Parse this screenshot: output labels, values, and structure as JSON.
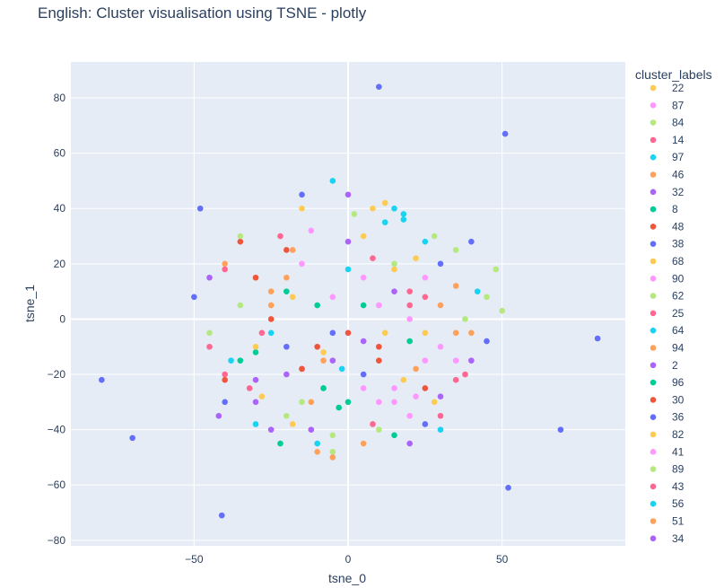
{
  "chart_data": {
    "type": "scatter",
    "title": "English: Cluster visualisation using TSNE - plotly",
    "xlabel": "tsne_0",
    "ylabel": "tsne_1",
    "xlim": [
      -90,
      90
    ],
    "ylim": [
      -82,
      93
    ],
    "xticks": [
      -50,
      0,
      50
    ],
    "yticks": [
      -80,
      -60,
      -40,
      -20,
      0,
      20,
      40,
      60,
      80
    ],
    "grid": true,
    "plot_background": "#e5ecf6",
    "legend_position": "right",
    "legend_title": "cluster_labels",
    "series": [
      {
        "name": "22",
        "color": "#FECB52",
        "points": [
          [
            12,
            42
          ],
          [
            -18,
            8
          ],
          [
            25,
            -5
          ],
          [
            5,
            30
          ],
          [
            -30,
            15
          ],
          [
            18,
            -22
          ],
          [
            -8,
            -12
          ]
        ]
      },
      {
        "name": "87",
        "color": "#FF97FF",
        "points": [
          [
            22,
            -28
          ],
          [
            15,
            -30
          ],
          [
            30,
            -10
          ],
          [
            10,
            5
          ],
          [
            -12,
            32
          ],
          [
            5,
            -25
          ],
          [
            25,
            15
          ]
        ]
      },
      {
        "name": "84",
        "color": "#B6E880",
        "points": [
          [
            -35,
            5
          ],
          [
            10,
            -40
          ],
          [
            -20,
            -35
          ],
          [
            28,
            30
          ],
          [
            48,
            18
          ],
          [
            -5,
            -48
          ],
          [
            2,
            38
          ]
        ]
      },
      {
        "name": "14",
        "color": "#FF6692",
        "points": [
          [
            -32,
            -25
          ],
          [
            8,
            22
          ],
          [
            -15,
            -18
          ],
          [
            20,
            10
          ],
          [
            35,
            -22
          ],
          [
            -45,
            -10
          ]
        ]
      },
      {
        "name": "97",
        "color": "#19D3F3",
        "points": [
          [
            12,
            35
          ],
          [
            -10,
            -45
          ],
          [
            30,
            -40
          ],
          [
            -25,
            -5
          ],
          [
            18,
            38
          ],
          [
            -5,
            50
          ]
        ]
      },
      {
        "name": "46",
        "color": "#FFA15A",
        "points": [
          [
            -25,
            10
          ],
          [
            35,
            -5
          ],
          [
            -10,
            -48
          ],
          [
            30,
            5
          ],
          [
            -40,
            20
          ],
          [
            5,
            -45
          ]
        ]
      },
      {
        "name": "32",
        "color": "#AB63FA",
        "points": [
          [
            -5,
            -15
          ],
          [
            -30,
            -30
          ],
          [
            15,
            10
          ],
          [
            -20,
            -20
          ],
          [
            40,
            -15
          ],
          [
            0,
            45
          ]
        ]
      },
      {
        "name": "8",
        "color": "#00CC96",
        "points": [
          [
            -35,
            -15
          ],
          [
            -10,
            5
          ],
          [
            0,
            -30
          ],
          [
            -20,
            10
          ],
          [
            -22,
            -45
          ],
          [
            20,
            -8
          ]
        ]
      },
      {
        "name": "48",
        "color": "#EF553B",
        "points": [
          [
            -30,
            15
          ],
          [
            -20,
            25
          ],
          [
            -10,
            -10
          ],
          [
            0,
            -5
          ],
          [
            -25,
            0
          ],
          [
            10,
            -15
          ]
        ]
      },
      {
        "name": "38",
        "color": "#636EFA",
        "points": [
          [
            10,
            84
          ],
          [
            51,
            67
          ],
          [
            81,
            -7
          ],
          [
            -80,
            -22
          ],
          [
            -70,
            -43
          ],
          [
            -41,
            -71
          ],
          [
            52,
            -61
          ],
          [
            69,
            -40
          ],
          [
            -48,
            40
          ]
        ]
      },
      {
        "name": "68",
        "color": "#FECB52",
        "points": [
          [
            15,
            18
          ],
          [
            -15,
            40
          ],
          [
            28,
            -30
          ],
          [
            8,
            40
          ],
          [
            -28,
            -28
          ]
        ]
      },
      {
        "name": "90",
        "color": "#FF97FF",
        "points": [
          [
            15,
            -25
          ],
          [
            20,
            -35
          ],
          [
            5,
            15
          ],
          [
            -5,
            8
          ],
          [
            25,
            -15
          ]
        ]
      },
      {
        "name": "62",
        "color": "#B6E880",
        "points": [
          [
            45,
            8
          ],
          [
            -45,
            -5
          ],
          [
            -15,
            -30
          ],
          [
            35,
            25
          ],
          [
            50,
            3
          ]
        ]
      },
      {
        "name": "25",
        "color": "#FF6692",
        "points": [
          [
            -28,
            -5
          ],
          [
            20,
            5
          ],
          [
            -40,
            -20
          ],
          [
            30,
            -35
          ],
          [
            38,
            -20
          ]
        ]
      },
      {
        "name": "64",
        "color": "#19D3F3",
        "points": [
          [
            18,
            36
          ],
          [
            -38,
            -15
          ],
          [
            25,
            28
          ],
          [
            -8,
            -25
          ],
          [
            0,
            18
          ]
        ]
      },
      {
        "name": "94",
        "color": "#FFA15A",
        "points": [
          [
            -25,
            5
          ],
          [
            -8,
            -15
          ],
          [
            40,
            -5
          ],
          [
            -18,
            25
          ],
          [
            22,
            -18
          ]
        ]
      },
      {
        "name": "2",
        "color": "#AB63FA",
        "points": [
          [
            -42,
            -35
          ],
          [
            0,
            28
          ],
          [
            -30,
            -22
          ],
          [
            5,
            -8
          ],
          [
            -12,
            -40
          ]
        ]
      },
      {
        "name": "96",
        "color": "#00CC96",
        "points": [
          [
            -30,
            -12
          ],
          [
            5,
            5
          ],
          [
            -8,
            -25
          ],
          [
            -3,
            -32
          ],
          [
            15,
            -42
          ]
        ]
      },
      {
        "name": "30",
        "color": "#EF553B",
        "points": [
          [
            -40,
            -22
          ],
          [
            -15,
            -18
          ],
          [
            25,
            -25
          ],
          [
            -35,
            28
          ],
          [
            10,
            -10
          ]
        ]
      },
      {
        "name": "36",
        "color": "#636EFA",
        "points": [
          [
            -50,
            8
          ],
          [
            -15,
            45
          ],
          [
            40,
            28
          ],
          [
            -40,
            -30
          ],
          [
            25,
            -38
          ],
          [
            45,
            -8
          ],
          [
            -5,
            -5
          ],
          [
            5,
            -20
          ],
          [
            -20,
            -10
          ],
          [
            30,
            20
          ]
        ]
      },
      {
        "name": "82",
        "color": "#FECB52",
        "points": [
          [
            -30,
            -10
          ],
          [
            22,
            22
          ],
          [
            -18,
            -38
          ],
          [
            12,
            -5
          ]
        ]
      },
      {
        "name": "41",
        "color": "#FF97FF",
        "points": [
          [
            20,
            0
          ],
          [
            -15,
            20
          ],
          [
            10,
            -30
          ],
          [
            35,
            -15
          ]
        ]
      },
      {
        "name": "89",
        "color": "#B6E880",
        "points": [
          [
            -35,
            30
          ],
          [
            15,
            20
          ],
          [
            -5,
            -42
          ],
          [
            38,
            0
          ]
        ]
      },
      {
        "name": "43",
        "color": "#FF6692",
        "points": [
          [
            -40,
            18
          ],
          [
            25,
            8
          ],
          [
            -22,
            30
          ],
          [
            8,
            -38
          ]
        ]
      },
      {
        "name": "56",
        "color": "#19D3F3",
        "points": [
          [
            15,
            40
          ],
          [
            -30,
            -38
          ],
          [
            42,
            10
          ],
          [
            -2,
            -18
          ]
        ]
      },
      {
        "name": "51",
        "color": "#FFA15A",
        "points": [
          [
            -20,
            15
          ],
          [
            35,
            12
          ],
          [
            -12,
            -30
          ],
          [
            -5,
            -50
          ]
        ]
      },
      {
        "name": "34",
        "color": "#AB63FA",
        "points": [
          [
            -25,
            -40
          ],
          [
            30,
            -28
          ],
          [
            -45,
            15
          ],
          [
            20,
            -45
          ]
        ]
      }
    ]
  }
}
